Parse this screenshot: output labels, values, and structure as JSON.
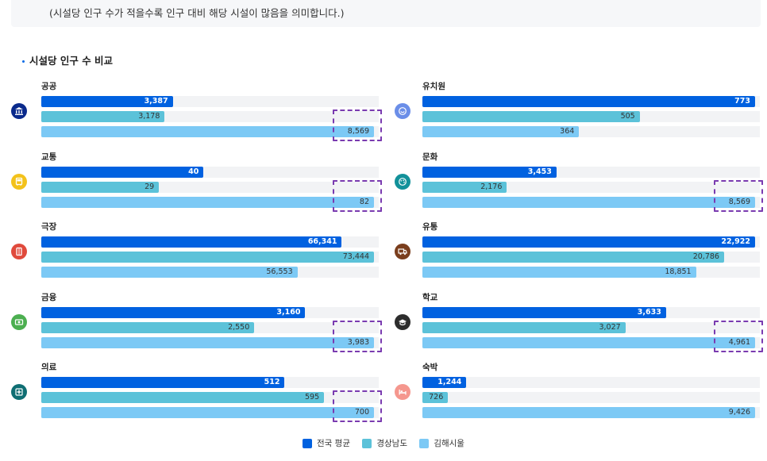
{
  "note": "(시설당 인구 수가 적을수록 인구 대비 해당 시설이 많음을 의미합니다.)",
  "section_title": "시설당 인구 수 비교",
  "colors": {
    "national": "#0061e0",
    "gyeongnam": "#5cc2d9",
    "gimhae": "#7cc9f5",
    "highlight": "#7a3bb0"
  },
  "legend": [
    {
      "name": "전국 평균",
      "color": "#0061e0"
    },
    {
      "name": "경상남도",
      "color": "#5cc2d9"
    },
    {
      "name": "김해시울",
      "color": "#7cc9f5"
    }
  ],
  "chart_data": [
    {
      "type": "bar",
      "orientation": "horizontal",
      "series_names": [
        "전국 평균",
        "경상남도",
        "김해시울"
      ],
      "categories": [
        {
          "name": "공공",
          "icon": "bank-icon",
          "icon_color": "#0a2a8c",
          "values": [
            3387,
            3178,
            8569
          ],
          "labels": [
            "3,387",
            "3,178",
            "8,569"
          ],
          "highlight": 2
        },
        {
          "name": "교통",
          "icon": "bus-icon",
          "icon_color": "#f3c21b",
          "values": [
            40,
            29,
            82
          ],
          "labels": [
            "40",
            "29",
            "82"
          ],
          "highlight": 2
        },
        {
          "name": "극장",
          "icon": "film-icon",
          "icon_color": "#e04a3c",
          "values": [
            66341,
            73444,
            56553
          ],
          "labels": [
            "66,341",
            "73,444",
            "56,553"
          ],
          "highlight": null
        },
        {
          "name": "금융",
          "icon": "money-icon",
          "icon_color": "#4caf50",
          "values": [
            3160,
            2550,
            3983
          ],
          "labels": [
            "3,160",
            "2,550",
            "3,983"
          ],
          "highlight": 2
        },
        {
          "name": "의료",
          "icon": "medical-cross-icon",
          "icon_color": "#0f6e73",
          "values": [
            512,
            595,
            700
          ],
          "labels": [
            "512",
            "595",
            "700"
          ],
          "highlight": 2
        },
        {
          "name": "유치원",
          "icon": "smile-icon",
          "icon_color": "#6b8ee8",
          "values": [
            773,
            505,
            364
          ],
          "labels": [
            "773",
            "505",
            "364"
          ],
          "highlight": null
        },
        {
          "name": "문화",
          "icon": "palette-icon",
          "icon_color": "#12919a",
          "values": [
            3453,
            2176,
            8569
          ],
          "labels": [
            "3,453",
            "2,176",
            "8,569"
          ],
          "highlight": 2
        },
        {
          "name": "유통",
          "icon": "truck-icon",
          "icon_color": "#7a3e1d",
          "values": [
            22922,
            20786,
            18851
          ],
          "labels": [
            "22,922",
            "20,786",
            "18,851"
          ],
          "highlight": null
        },
        {
          "name": "학교",
          "icon": "graduation-cap-icon",
          "icon_color": "#2d2d2d",
          "values": [
            3633,
            3027,
            4961
          ],
          "labels": [
            "3,633",
            "3,027",
            "4,961"
          ],
          "highlight": 2
        },
        {
          "name": "숙박",
          "icon": "bed-icon",
          "icon_color": "#f5978e",
          "values": [
            1244,
            726,
            9426
          ],
          "labels": [
            "1,244",
            "726",
            "9,426"
          ],
          "highlight": null
        }
      ]
    }
  ]
}
